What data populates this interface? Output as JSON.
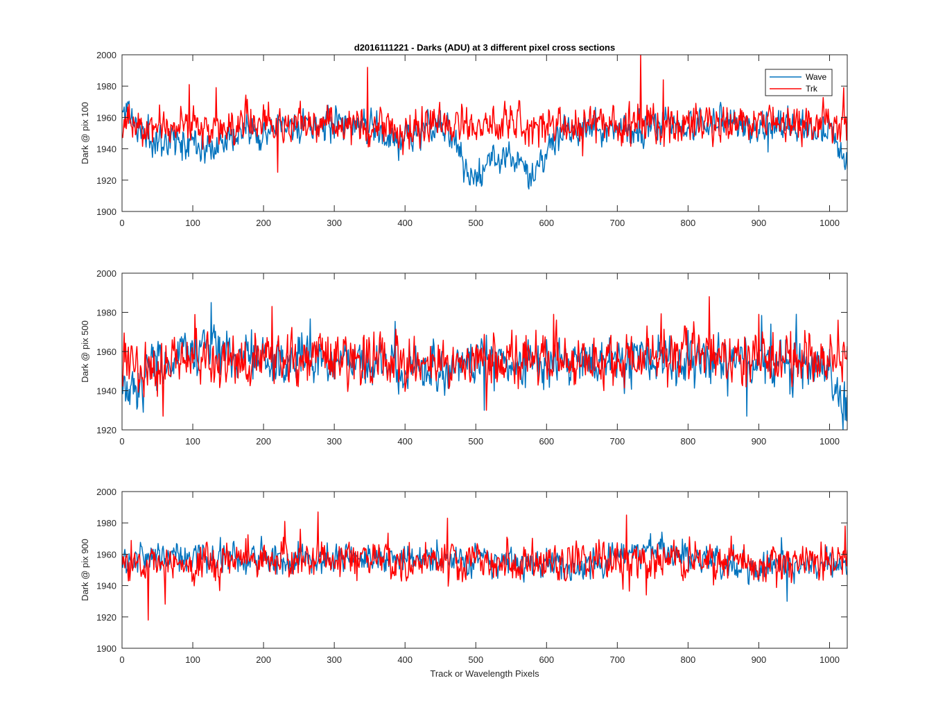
{
  "figure": {
    "title": "d2016111221 - Darks (ADU) at 3 different pixel cross sections",
    "xlabel": "Track or Wavelength Pixels"
  },
  "legend": {
    "entries": [
      "Wave",
      "Trk"
    ],
    "placement": "top-right of first subplot"
  },
  "colors": {
    "Wave": "#0072BD",
    "Trk": "#FF0000",
    "axes": "#262626"
  },
  "chart_data": [
    {
      "type": "line",
      "ylabel": "Dark @ pix 100",
      "xlim": [
        0,
        1025
      ],
      "ylim": [
        1900,
        2000
      ],
      "xticks": [
        0,
        100,
        200,
        300,
        400,
        500,
        600,
        700,
        800,
        900,
        1000
      ],
      "yticks": [
        1900,
        1920,
        1940,
        1960,
        1980,
        2000
      ],
      "series": [
        {
          "name": "Wave",
          "base": [
            [
              0,
              1963
            ],
            [
              10,
              1966
            ],
            [
              20,
              1953
            ],
            [
              50,
              1946
            ],
            [
              100,
              1946
            ],
            [
              120,
              1942
            ],
            [
              150,
              1948
            ],
            [
              200,
              1950
            ],
            [
              250,
              1955
            ],
            [
              300,
              1956
            ],
            [
              350,
              1955
            ],
            [
              380,
              1945
            ],
            [
              420,
              1950
            ],
            [
              450,
              1956
            ],
            [
              470,
              1945
            ],
            [
              490,
              1925
            ],
            [
              500,
              1922
            ],
            [
              520,
              1930
            ],
            [
              540,
              1937
            ],
            [
              560,
              1935
            ],
            [
              570,
              1930
            ],
            [
              580,
              1918
            ],
            [
              590,
              1925
            ],
            [
              600,
              1940
            ],
            [
              620,
              1950
            ],
            [
              700,
              1955
            ],
            [
              730,
              1950
            ],
            [
              760,
              1955
            ],
            [
              800,
              1955
            ],
            [
              900,
              1955
            ],
            [
              1000,
              1950
            ],
            [
              1025,
              1935
            ]
          ],
          "noise": 7,
          "seed": 11
        },
        {
          "name": "Trk",
          "base": [
            [
              0,
              1955
            ],
            [
              100,
              1955
            ],
            [
              200,
              1955
            ],
            [
              300,
              1956
            ],
            [
              400,
              1955
            ],
            [
              500,
              1955
            ],
            [
              600,
              1955
            ],
            [
              700,
              1956
            ],
            [
              800,
              1955
            ],
            [
              900,
              1956
            ],
            [
              1000,
              1955
            ],
            [
              1025,
              1955
            ]
          ],
          "noise": 8,
          "seed": 23,
          "spikes": [
            [
              95,
              1981
            ],
            [
              220,
              1925
            ],
            [
              347,
              1992
            ],
            [
              733,
              2000
            ],
            [
              765,
              1984
            ],
            [
              1020,
              1979
            ]
          ]
        }
      ]
    },
    {
      "type": "line",
      "ylabel": "Dark @ pix 500",
      "xlim": [
        0,
        1025
      ],
      "ylim": [
        1920,
        2000
      ],
      "xticks": [
        0,
        100,
        200,
        300,
        400,
        500,
        600,
        700,
        800,
        900,
        1000
      ],
      "yticks": [
        1920,
        1940,
        1960,
        1980,
        2000
      ],
      "series": [
        {
          "name": "Wave",
          "base": [
            [
              0,
              1945
            ],
            [
              10,
              1938
            ],
            [
              30,
              1950
            ],
            [
              60,
              1955
            ],
            [
              100,
              1958
            ],
            [
              130,
              1962
            ],
            [
              150,
              1958
            ],
            [
              200,
              1955
            ],
            [
              300,
              1955
            ],
            [
              400,
              1953
            ],
            [
              500,
              1955
            ],
            [
              600,
              1955
            ],
            [
              700,
              1955
            ],
            [
              800,
              1955
            ],
            [
              900,
              1955
            ],
            [
              980,
              1953
            ],
            [
              1000,
              1948
            ],
            [
              1025,
              1932
            ]
          ],
          "noise": 8,
          "seed": 37,
          "spikes": [
            [
              126,
              1985
            ],
            [
              512,
              1930
            ],
            [
              883,
              1927
            ],
            [
              1022,
              1925
            ]
          ]
        },
        {
          "name": "Trk",
          "base": [
            [
              0,
              1955
            ],
            [
              100,
              1956
            ],
            [
              200,
              1955
            ],
            [
              300,
              1956
            ],
            [
              400,
              1955
            ],
            [
              500,
              1955
            ],
            [
              600,
              1955
            ],
            [
              700,
              1956
            ],
            [
              800,
              1956
            ],
            [
              900,
              1956
            ],
            [
              1000,
              1955
            ],
            [
              1025,
              1955
            ]
          ],
          "noise": 9,
          "seed": 53,
          "spikes": [
            [
              58,
              1927
            ],
            [
              212,
              1983
            ],
            [
              515,
              1930
            ],
            [
              610,
              1979
            ],
            [
              830,
              1988
            ],
            [
              900,
              1979
            ],
            [
              1012,
              1976
            ]
          ]
        }
      ]
    },
    {
      "type": "line",
      "ylabel": "Dark @ pix 900",
      "xlim": [
        0,
        1025
      ],
      "ylim": [
        1900,
        2000
      ],
      "xticks": [
        0,
        100,
        200,
        300,
        400,
        500,
        600,
        700,
        800,
        900,
        1000
      ],
      "yticks": [
        1900,
        1920,
        1940,
        1960,
        1980,
        2000
      ],
      "series": [
        {
          "name": "Wave",
          "base": [
            [
              0,
              1957
            ],
            [
              100,
              1958
            ],
            [
              200,
              1958
            ],
            [
              300,
              1958
            ],
            [
              400,
              1957
            ],
            [
              500,
              1956
            ],
            [
              600,
              1955
            ],
            [
              650,
              1950
            ],
            [
              700,
              1958
            ],
            [
              760,
              1965
            ],
            [
              780,
              1962
            ],
            [
              800,
              1958
            ],
            [
              850,
              1955
            ],
            [
              900,
              1950
            ],
            [
              950,
              1952
            ],
            [
              1000,
              1955
            ],
            [
              1025,
              1955
            ]
          ],
          "noise": 6,
          "seed": 71,
          "spikes": [
            [
              940,
              1930
            ]
          ]
        },
        {
          "name": "Trk",
          "base": [
            [
              0,
              1955
            ],
            [
              100,
              1955
            ],
            [
              200,
              1958
            ],
            [
              300,
              1957
            ],
            [
              400,
              1956
            ],
            [
              500,
              1955
            ],
            [
              600,
              1956
            ],
            [
              700,
              1956
            ],
            [
              800,
              1956
            ],
            [
              900,
              1955
            ],
            [
              1000,
              1955
            ],
            [
              1025,
              1955
            ]
          ],
          "noise": 8,
          "seed": 89,
          "spikes": [
            [
              37,
              1918
            ],
            [
              230,
              1981
            ],
            [
              277,
              1987
            ],
            [
              460,
              1983
            ],
            [
              713,
              1985
            ],
            [
              1022,
              1978
            ]
          ]
        }
      ]
    }
  ]
}
